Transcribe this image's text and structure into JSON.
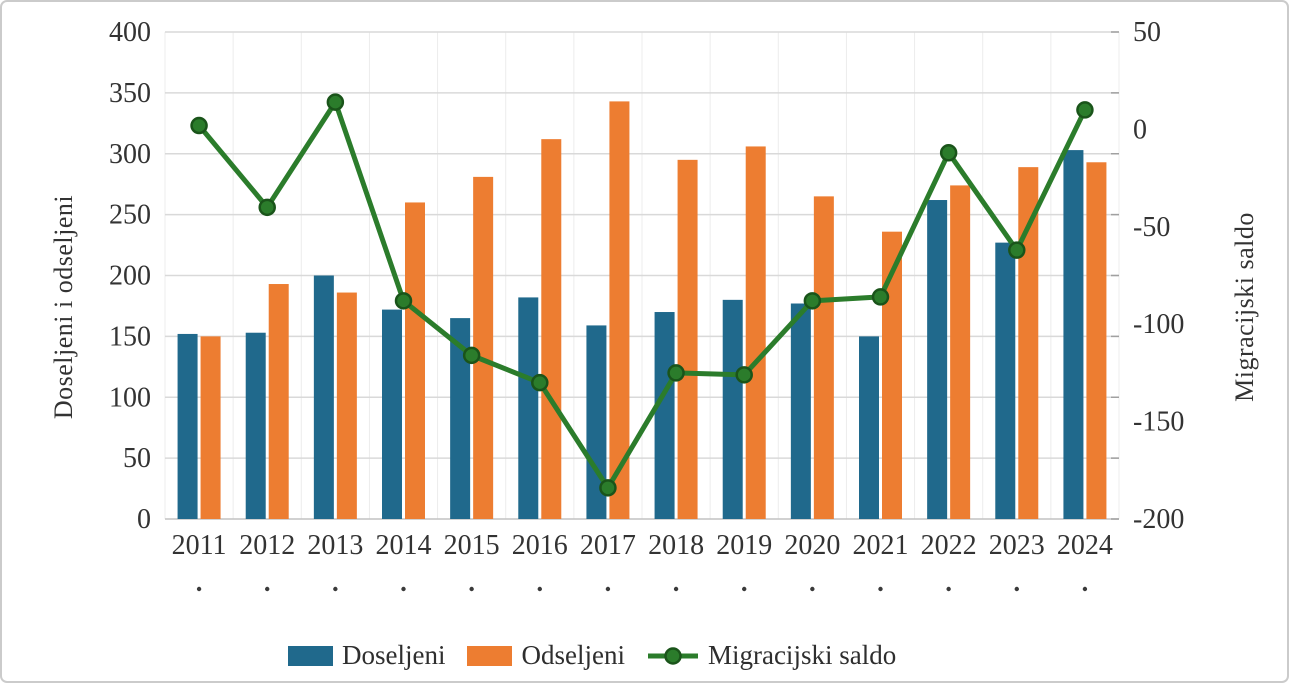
{
  "chart_data": {
    "type": "bar",
    "subtype": "grouped-bars-with-line-combo",
    "title": "",
    "categories": [
      "2011",
      "2012",
      "2013",
      "2014",
      "2015",
      "2016",
      "2017",
      "2018",
      "2019",
      "2020",
      "2021",
      "2022",
      "2023",
      "2024"
    ],
    "series": [
      {
        "name": "Doseljeni",
        "type": "bar",
        "axis": "left",
        "color": "#20698C",
        "values": [
          152,
          153,
          200,
          172,
          165,
          182,
          159,
          170,
          180,
          177,
          150,
          262,
          227,
          303
        ]
      },
      {
        "name": "Odseljeni",
        "type": "bar",
        "axis": "left",
        "color": "#ED7D31",
        "values": [
          150,
          193,
          186,
          260,
          281,
          312,
          343,
          295,
          306,
          265,
          236,
          274,
          289,
          293
        ]
      },
      {
        "name": "Migracijski saldo",
        "type": "line",
        "axis": "right",
        "color": "#2B7C2B",
        "marker_stroke": "#1A541A",
        "values": [
          2,
          -40,
          14,
          -88,
          -116,
          -130,
          -184,
          -125,
          -126,
          -88,
          -86,
          -12,
          -62,
          10
        ]
      }
    ],
    "left_axis": {
      "title": "Doseljeni i odseljeni",
      "min": 0,
      "max": 400,
      "step": 50,
      "ticks": [
        0,
        50,
        100,
        150,
        200,
        250,
        300,
        350,
        400
      ]
    },
    "right_axis": {
      "title": "Migracijski saldo",
      "min": -200,
      "max": 50,
      "step": 50,
      "ticks": [
        50,
        0,
        -50,
        -100,
        -150,
        -200
      ]
    },
    "x_axis": {
      "sub_label_dots": [
        ".",
        ".",
        ".",
        ".",
        ".",
        ".",
        ".",
        ".",
        ".",
        ".",
        ".",
        ".",
        ".",
        "."
      ]
    },
    "grid": true,
    "legend_position": "bottom",
    "colors": {
      "gridline": "#d9d9d9",
      "category_separator": "#ececec",
      "axis_line": "#c2c2c2",
      "tick": "#a0a0a0",
      "text": "#333333"
    }
  },
  "legend": {
    "items": [
      {
        "label": "Doseljeni"
      },
      {
        "label": "Odseljeni"
      },
      {
        "label": "Migracijski saldo"
      }
    ]
  }
}
